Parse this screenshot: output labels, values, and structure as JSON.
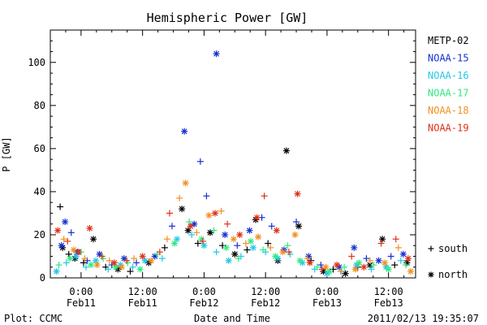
{
  "chart_data": {
    "type": "scatter",
    "title": "Hemispheric Power [GW]",
    "ylabel": "P [GW]",
    "xlabel": "Date and Time",
    "ylim": [
      0,
      115
    ],
    "xlim": [
      -0.25,
      2.72
    ],
    "yticks": [
      0,
      20,
      40,
      60,
      80,
      100
    ],
    "xticks": [
      {
        "value": 0.0,
        "time": "0:00",
        "date": "Feb11"
      },
      {
        "value": 0.5,
        "time": "12:00",
        "date": "Feb11"
      },
      {
        "value": 1.0,
        "time": "0:00",
        "date": "Feb12"
      },
      {
        "value": 1.5,
        "time": "12:00",
        "date": "Feb12"
      },
      {
        "value": 2.0,
        "time": "0:00",
        "date": "Feb13"
      },
      {
        "value": 2.5,
        "time": "12:00",
        "date": "Feb13"
      }
    ],
    "legend": [
      {
        "name": "METP-02",
        "color": "#000000"
      },
      {
        "name": "NOAA-15",
        "color": "#1530d0"
      },
      {
        "name": "NOAA-16",
        "color": "#20c8e8"
      },
      {
        "name": "NOAA-17",
        "color": "#30e880"
      },
      {
        "name": "NOAA-18",
        "color": "#f09020"
      },
      {
        "name": "NOAA-19",
        "color": "#e03018"
      }
    ],
    "marker_legend": [
      {
        "symbol": "+",
        "label": "south"
      },
      {
        "symbol": "*",
        "label": "north"
      }
    ],
    "series": [
      {
        "name": "METP-02",
        "color": "#000000",
        "points": [
          {
            "x": -0.17,
            "y": 33,
            "m": "+"
          },
          {
            "x": -0.15,
            "y": 14,
            "m": "*"
          },
          {
            "x": -0.1,
            "y": 11,
            "m": "+"
          },
          {
            "x": -0.05,
            "y": 9,
            "m": "*"
          },
          {
            "x": 0.02,
            "y": 7,
            "m": "+"
          },
          {
            "x": 0.1,
            "y": 18,
            "m": "*"
          },
          {
            "x": 0.2,
            "y": 5,
            "m": "+"
          },
          {
            "x": 0.3,
            "y": 4,
            "m": "*"
          },
          {
            "x": 0.4,
            "y": 3,
            "m": "+"
          },
          {
            "x": 0.55,
            "y": 7,
            "m": "*"
          },
          {
            "x": 0.68,
            "y": 14,
            "m": "+"
          },
          {
            "x": 0.82,
            "y": 32,
            "m": "*"
          },
          {
            "x": 0.87,
            "y": 22,
            "m": "*"
          },
          {
            "x": 0.95,
            "y": 16,
            "m": "+"
          },
          {
            "x": 1.05,
            "y": 21,
            "m": "*"
          },
          {
            "x": 1.15,
            "y": 15,
            "m": "+"
          },
          {
            "x": 1.25,
            "y": 11,
            "m": "*"
          },
          {
            "x": 1.35,
            "y": 13,
            "m": "+"
          },
          {
            "x": 1.42,
            "y": 27,
            "m": "*"
          },
          {
            "x": 1.52,
            "y": 16,
            "m": "+"
          },
          {
            "x": 1.6,
            "y": 8,
            "m": "*"
          },
          {
            "x": 1.67,
            "y": 59,
            "m": "*"
          },
          {
            "x": 1.77,
            "y": 24,
            "m": "*"
          },
          {
            "x": 1.87,
            "y": 8,
            "m": "+"
          },
          {
            "x": 1.97,
            "y": 3,
            "m": "*"
          },
          {
            "x": 2.05,
            "y": 4,
            "m": "+"
          },
          {
            "x": 2.15,
            "y": 2,
            "m": "*"
          },
          {
            "x": 2.25,
            "y": 5,
            "m": "+"
          },
          {
            "x": 2.35,
            "y": 6,
            "m": "*"
          },
          {
            "x": 2.45,
            "y": 18,
            "m": "*"
          },
          {
            "x": 2.55,
            "y": 6,
            "m": "+"
          },
          {
            "x": 2.65,
            "y": 7,
            "m": "*"
          }
        ]
      },
      {
        "name": "NOAA-15",
        "color": "#1530d0",
        "points": [
          {
            "x": -0.16,
            "y": 15,
            "m": "*"
          },
          {
            "x": -0.13,
            "y": 26,
            "m": "*"
          },
          {
            "x": -0.08,
            "y": 21,
            "m": "+"
          },
          {
            "x": -0.03,
            "y": 12,
            "m": "*"
          },
          {
            "x": 0.05,
            "y": 8,
            "m": "+"
          },
          {
            "x": 0.15,
            "y": 11,
            "m": "*"
          },
          {
            "x": 0.25,
            "y": 6,
            "m": "+"
          },
          {
            "x": 0.35,
            "y": 9,
            "m": "*"
          },
          {
            "x": 0.45,
            "y": 7,
            "m": "+"
          },
          {
            "x": 0.6,
            "y": 10,
            "m": "*"
          },
          {
            "x": 0.74,
            "y": 24,
            "m": "+"
          },
          {
            "x": 0.84,
            "y": 68,
            "m": "*"
          },
          {
            "x": 0.92,
            "y": 25,
            "m": "*"
          },
          {
            "x": 0.97,
            "y": 54,
            "m": "+"
          },
          {
            "x": 1.02,
            "y": 38,
            "m": "+"
          },
          {
            "x": 1.1,
            "y": 104,
            "m": "*"
          },
          {
            "x": 1.17,
            "y": 20,
            "m": "*"
          },
          {
            "x": 1.27,
            "y": 15,
            "m": "+"
          },
          {
            "x": 1.37,
            "y": 22,
            "m": "*"
          },
          {
            "x": 1.47,
            "y": 28,
            "m": "+"
          },
          {
            "x": 1.55,
            "y": 24,
            "m": "+"
          },
          {
            "x": 1.65,
            "y": 13,
            "m": "*"
          },
          {
            "x": 1.75,
            "y": 26,
            "m": "+"
          },
          {
            "x": 1.85,
            "y": 10,
            "m": "*"
          },
          {
            "x": 1.95,
            "y": 6,
            "m": "+"
          },
          {
            "x": 2.1,
            "y": 5,
            "m": "*"
          },
          {
            "x": 2.22,
            "y": 14,
            "m": "*"
          },
          {
            "x": 2.32,
            "y": 9,
            "m": "+"
          },
          {
            "x": 2.42,
            "y": 8,
            "m": "*"
          },
          {
            "x": 2.52,
            "y": 10,
            "m": "+"
          },
          {
            "x": 2.62,
            "y": 11,
            "m": "*"
          }
        ]
      },
      {
        "name": "NOAA-16",
        "color": "#20c8e8",
        "points": [
          {
            "x": -0.2,
            "y": 3,
            "m": "*"
          },
          {
            "x": -0.12,
            "y": 7,
            "m": "+"
          },
          {
            "x": -0.04,
            "y": 10,
            "m": "*"
          },
          {
            "x": 0.04,
            "y": 5,
            "m": "+"
          },
          {
            "x": 0.12,
            "y": 8,
            "m": "*"
          },
          {
            "x": 0.22,
            "y": 4,
            "m": "+"
          },
          {
            "x": 0.32,
            "y": 6,
            "m": "*"
          },
          {
            "x": 0.42,
            "y": 5,
            "m": "+"
          },
          {
            "x": 0.52,
            "y": 8,
            "m": "*"
          },
          {
            "x": 0.66,
            "y": 9,
            "m": "+"
          },
          {
            "x": 0.78,
            "y": 18,
            "m": "*"
          },
          {
            "x": 0.9,
            "y": 20,
            "m": "+"
          },
          {
            "x": 1.0,
            "y": 15,
            "m": "*"
          },
          {
            "x": 1.1,
            "y": 12,
            "m": "+"
          },
          {
            "x": 1.2,
            "y": 8,
            "m": "*"
          },
          {
            "x": 1.3,
            "y": 10,
            "m": "+"
          },
          {
            "x": 1.4,
            "y": 14,
            "m": "*"
          },
          {
            "x": 1.5,
            "y": 12,
            "m": "+"
          },
          {
            "x": 1.6,
            "y": 9,
            "m": "*"
          },
          {
            "x": 1.7,
            "y": 11,
            "m": "+"
          },
          {
            "x": 1.8,
            "y": 7,
            "m": "*"
          },
          {
            "x": 1.9,
            "y": 4,
            "m": "+"
          },
          {
            "x": 2.0,
            "y": 2,
            "m": "*"
          },
          {
            "x": 2.12,
            "y": 3,
            "m": "+"
          },
          {
            "x": 2.24,
            "y": 6,
            "m": "*"
          },
          {
            "x": 2.36,
            "y": 4,
            "m": "+"
          },
          {
            "x": 2.48,
            "y": 5,
            "m": "*"
          },
          {
            "x": 2.6,
            "y": 8,
            "m": "+"
          }
        ]
      },
      {
        "name": "NOAA-17",
        "color": "#30e880",
        "points": [
          {
            "x": -0.18,
            "y": 6,
            "m": "+"
          },
          {
            "x": -0.09,
            "y": 9,
            "m": "*"
          },
          {
            "x": 0.0,
            "y": 12,
            "m": "+"
          },
          {
            "x": 0.08,
            "y": 6,
            "m": "*"
          },
          {
            "x": 0.18,
            "y": 9,
            "m": "+"
          },
          {
            "x": 0.28,
            "y": 5,
            "m": "*"
          },
          {
            "x": 0.38,
            "y": 7,
            "m": "+"
          },
          {
            "x": 0.48,
            "y": 4,
            "m": "*"
          },
          {
            "x": 0.62,
            "y": 11,
            "m": "+"
          },
          {
            "x": 0.76,
            "y": 16,
            "m": "*"
          },
          {
            "x": 0.88,
            "y": 26,
            "m": "+"
          },
          {
            "x": 0.98,
            "y": 18,
            "m": "*"
          },
          {
            "x": 1.08,
            "y": 22,
            "m": "+"
          },
          {
            "x": 1.18,
            "y": 14,
            "m": "*"
          },
          {
            "x": 1.28,
            "y": 9,
            "m": "+"
          },
          {
            "x": 1.38,
            "y": 17,
            "m": "*"
          },
          {
            "x": 1.48,
            "y": 13,
            "m": "+"
          },
          {
            "x": 1.58,
            "y": 10,
            "m": "*"
          },
          {
            "x": 1.68,
            "y": 15,
            "m": "+"
          },
          {
            "x": 1.78,
            "y": 8,
            "m": "*"
          },
          {
            "x": 1.92,
            "y": 5,
            "m": "+"
          },
          {
            "x": 2.02,
            "y": 3,
            "m": "*"
          },
          {
            "x": 2.14,
            "y": 5,
            "m": "+"
          },
          {
            "x": 2.26,
            "y": 7,
            "m": "*"
          },
          {
            "x": 2.38,
            "y": 6,
            "m": "+"
          },
          {
            "x": 2.5,
            "y": 4,
            "m": "*"
          },
          {
            "x": 2.64,
            "y": 6,
            "m": "+"
          }
        ]
      },
      {
        "name": "NOAA-18",
        "color": "#f09020",
        "points": [
          {
            "x": -0.14,
            "y": 18,
            "m": "+"
          },
          {
            "x": -0.06,
            "y": 13,
            "m": "*"
          },
          {
            "x": 0.03,
            "y": 9,
            "m": "+"
          },
          {
            "x": 0.13,
            "y": 6,
            "m": "*"
          },
          {
            "x": 0.23,
            "y": 8,
            "m": "+"
          },
          {
            "x": 0.33,
            "y": 5,
            "m": "*"
          },
          {
            "x": 0.43,
            "y": 9,
            "m": "+"
          },
          {
            "x": 0.57,
            "y": 8,
            "m": "*"
          },
          {
            "x": 0.7,
            "y": 18,
            "m": "+"
          },
          {
            "x": 0.8,
            "y": 37,
            "m": "+"
          },
          {
            "x": 0.85,
            "y": 44,
            "m": "*"
          },
          {
            "x": 0.94,
            "y": 21,
            "m": "+"
          },
          {
            "x": 1.04,
            "y": 29,
            "m": "*"
          },
          {
            "x": 1.14,
            "y": 31,
            "m": "+"
          },
          {
            "x": 1.24,
            "y": 18,
            "m": "*"
          },
          {
            "x": 1.34,
            "y": 16,
            "m": "+"
          },
          {
            "x": 1.44,
            "y": 19,
            "m": "*"
          },
          {
            "x": 1.54,
            "y": 14,
            "m": "+"
          },
          {
            "x": 1.64,
            "y": 12,
            "m": "*"
          },
          {
            "x": 1.74,
            "y": 20,
            "m": "*"
          },
          {
            "x": 1.84,
            "y": 9,
            "m": "+"
          },
          {
            "x": 1.99,
            "y": 5,
            "m": "*"
          },
          {
            "x": 2.11,
            "y": 3,
            "m": "+"
          },
          {
            "x": 2.23,
            "y": 4,
            "m": "*"
          },
          {
            "x": 2.35,
            "y": 8,
            "m": "+"
          },
          {
            "x": 2.47,
            "y": 7,
            "m": "*"
          },
          {
            "x": 2.58,
            "y": 14,
            "m": "+"
          },
          {
            "x": 2.68,
            "y": 3,
            "m": "*"
          }
        ]
      },
      {
        "name": "NOAA-19",
        "color": "#e03018",
        "points": [
          {
            "x": -0.19,
            "y": 22,
            "m": "*"
          },
          {
            "x": -0.11,
            "y": 17,
            "m": "+"
          },
          {
            "x": -0.02,
            "y": 12,
            "m": "*"
          },
          {
            "x": 0.07,
            "y": 23,
            "m": "*"
          },
          {
            "x": 0.17,
            "y": 10,
            "m": "+"
          },
          {
            "x": 0.27,
            "y": 7,
            "m": "*"
          },
          {
            "x": 0.37,
            "y": 8,
            "m": "+"
          },
          {
            "x": 0.5,
            "y": 10,
            "m": "*"
          },
          {
            "x": 0.64,
            "y": 12,
            "m": "+"
          },
          {
            "x": 0.72,
            "y": 30,
            "m": "+"
          },
          {
            "x": 0.89,
            "y": 24,
            "m": "*"
          },
          {
            "x": 0.99,
            "y": 17,
            "m": "+"
          },
          {
            "x": 1.09,
            "y": 30,
            "m": "*"
          },
          {
            "x": 1.19,
            "y": 25,
            "m": "+"
          },
          {
            "x": 1.29,
            "y": 20,
            "m": "*"
          },
          {
            "x": 1.43,
            "y": 28,
            "m": "*"
          },
          {
            "x": 1.49,
            "y": 38,
            "m": "+"
          },
          {
            "x": 1.59,
            "y": 22,
            "m": "*"
          },
          {
            "x": 1.69,
            "y": 12,
            "m": "+"
          },
          {
            "x": 1.76,
            "y": 39,
            "m": "*"
          },
          {
            "x": 1.86,
            "y": 7,
            "m": "*"
          },
          {
            "x": 1.96,
            "y": 4,
            "m": "+"
          },
          {
            "x": 2.08,
            "y": 6,
            "m": "*"
          },
          {
            "x": 2.2,
            "y": 10,
            "m": "+"
          },
          {
            "x": 2.3,
            "y": 5,
            "m": "*"
          },
          {
            "x": 2.44,
            "y": 16,
            "m": "+"
          },
          {
            "x": 2.56,
            "y": 18,
            "m": "+"
          },
          {
            "x": 2.66,
            "y": 9,
            "m": "*"
          }
        ]
      }
    ]
  },
  "footer": {
    "left": "Plot: CCMC",
    "right": "2011/02/13 19:35:07"
  }
}
